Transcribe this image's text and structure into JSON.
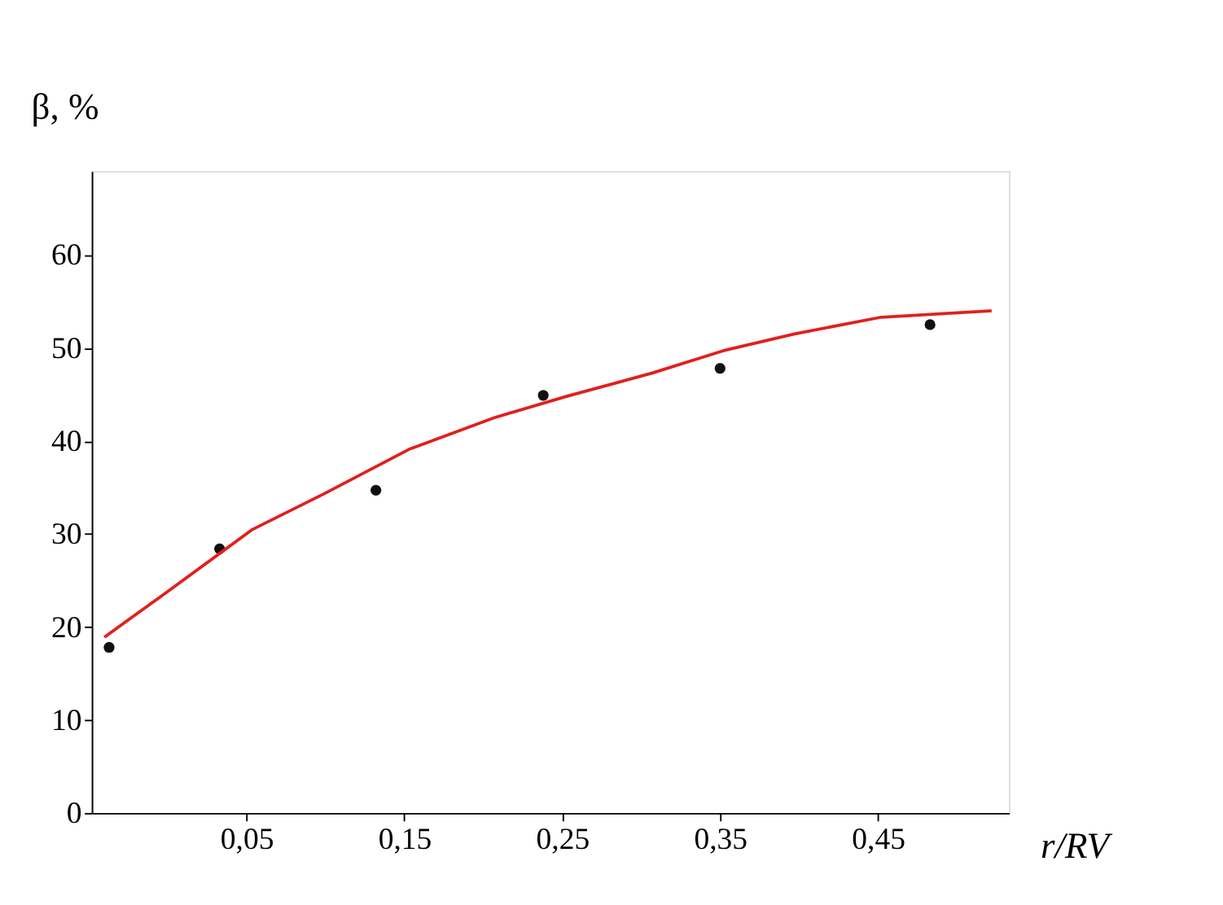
{
  "chart_data": {
    "type": "scatter",
    "xlabel": "r/RV",
    "ylabel": "β, %",
    "xlim": [
      -0.048,
      0.533
    ],
    "ylim": [
      0,
      69
    ],
    "xticks": [
      {
        "value": 0.05,
        "label": "0,05"
      },
      {
        "value": 0.15,
        "label": "0,15"
      },
      {
        "value": 0.25,
        "label": "0,25"
      },
      {
        "value": 0.35,
        "label": "0,35"
      },
      {
        "value": 0.45,
        "label": "0,45"
      }
    ],
    "yticks": [
      0,
      10,
      20,
      30,
      40,
      50,
      60
    ],
    "grid": false,
    "series": [
      {
        "color": "#111111",
        "marker": "circle",
        "x": [
          -0.037,
          0.033,
          0.132,
          0.238,
          0.35,
          0.483
        ],
        "values": [
          17.8,
          28.4,
          34.7,
          44.9,
          47.8,
          52.5
        ]
      },
      {
        "type": "line",
        "color": "#e0201c",
        "marker": "none",
        "line_style": "solid",
        "x": [
          -0.04,
          0.0,
          0.054,
          0.099,
          0.153,
          0.207,
          0.253,
          0.307,
          0.352,
          0.397,
          0.452,
          0.522
        ],
        "values": [
          18.9,
          23.8,
          30.5,
          34.3,
          39.1,
          42.5,
          44.8,
          47.3,
          49.7,
          51.5,
          53.3,
          54.0
        ]
      }
    ]
  }
}
